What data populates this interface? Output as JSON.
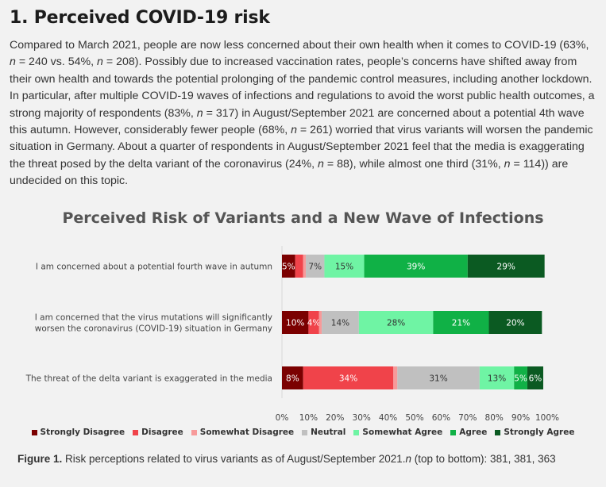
{
  "heading": "1. Perceived COVID-19 risk",
  "intro_parts": [
    {
      "t": "Compared to March 2021, people are now less concerned about their own health when it comes to COVID-19 (63%, "
    },
    {
      "t": "n",
      "i": true
    },
    {
      "t": " = 240 vs. 54%, "
    },
    {
      "t": "n",
      "i": true
    },
    {
      "t": " = 208). Possibly due to increased vaccination rates, people’s concerns have shifted away from their own health and towards the potential prolonging of the pandemic control measures, including another lockdown. In particular, after multiple COVID-19 waves of infections and regulations to avoid the worst public health outcomes, a strong majority of respondents (83%, "
    },
    {
      "t": "n",
      "i": true
    },
    {
      "t": " = 317) in August/September 2021 are concerned about a potential 4th wave this autumn. However, considerably fewer people (68%, "
    },
    {
      "t": "n",
      "i": true
    },
    {
      "t": " = 261) worried that virus variants will worsen the pandemic situation in Germany. About a quarter of respondents in August/September 2021 feel that the media is exaggerating the threat posed by the delta variant of the coronavirus (24%, "
    },
    {
      "t": "n",
      "i": true
    },
    {
      "t": " = 88), while almost one third (31%, "
    },
    {
      "t": "n",
      "i": true
    },
    {
      "t": " = 114)) are undecided on this topic."
    }
  ],
  "chart_data": {
    "type": "bar",
    "orientation": "horizontal",
    "stacked": true,
    "title": "Perceived Risk of Variants and a New Wave of Infections",
    "categories": [
      [
        "I am concerned about a potential fourth wave in autumn"
      ],
      [
        "I am concerned that the virus mutations will significantly",
        "worsen the coronavirus (COVID-19) situation in Germany"
      ],
      [
        "The threat of the delta variant is exaggerated in the media"
      ]
    ],
    "series": [
      {
        "name": "Strongly Disagree",
        "color": "#7b0000",
        "text_color": "#ffffff",
        "values": [
          5,
          10,
          8
        ],
        "labels": [
          "5%",
          "10%",
          "8%"
        ]
      },
      {
        "name": "Disagree",
        "color": "#f0434a",
        "text_color": "#ffffff",
        "values": [
          3,
          4,
          34
        ],
        "labels": [
          "",
          "4%",
          "34%"
        ]
      },
      {
        "name": "Somewhat Disagree",
        "color": "#f79a9a",
        "text_color": "#333333",
        "values": [
          1,
          1,
          1.5
        ],
        "labels": [
          "",
          "",
          ""
        ]
      },
      {
        "name": "Neutral",
        "color": "#c0c0c0",
        "text_color": "#333333",
        "values": [
          7,
          14,
          31
        ],
        "labels": [
          "7%",
          "14%",
          "31%"
        ]
      },
      {
        "name": "Somewhat Agree",
        "color": "#6ff4a4",
        "text_color": "#333333",
        "values": [
          15,
          28,
          13
        ],
        "labels": [
          "15%",
          "28%",
          "13%"
        ]
      },
      {
        "name": "Agree",
        "color": "#10b146",
        "text_color": "#ffffff",
        "values": [
          39,
          21,
          5
        ],
        "labels": [
          "39%",
          "21%",
          "5%"
        ]
      },
      {
        "name": "Strongly Agree",
        "color": "#0b5a22",
        "text_color": "#ffffff",
        "values": [
          29,
          20,
          6
        ],
        "labels": [
          "29%",
          "20%",
          "6%"
        ]
      }
    ],
    "xlim": [
      0,
      100
    ],
    "xticks": [
      0,
      10,
      20,
      30,
      40,
      50,
      60,
      70,
      80,
      90,
      100
    ],
    "xtick_labels": [
      "0%",
      "10%",
      "20%",
      "30%",
      "40%",
      "50%",
      "60%",
      "70%",
      "80%",
      "90%",
      "100%"
    ],
    "grid": false,
    "legend_position": "bottom"
  },
  "caption": {
    "label": "Figure 1.",
    "text": " Risk perceptions related to virus variants as of August/September 2021.",
    "n_italic": "n",
    "n_text": " (top to bottom): 381, 381, 363"
  }
}
